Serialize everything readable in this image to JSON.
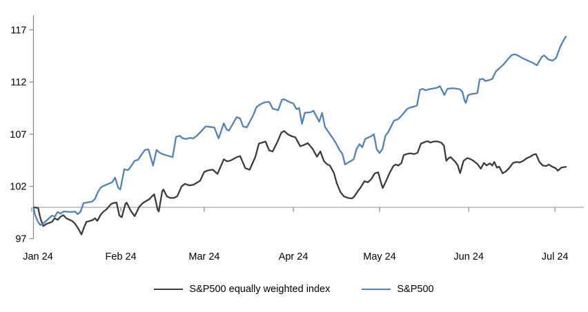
{
  "chart_data": {
    "type": "line",
    "title": "",
    "x_unit": "days since 2024-01-01",
    "x_tick_labels": [
      "Jan 24",
      "Feb 24",
      "Mar 24",
      "Apr 24",
      "May 24",
      "Jun 24",
      "Jul 24"
    ],
    "x_tick_days": [
      0,
      31,
      60,
      91,
      121,
      152,
      182
    ],
    "y_ticks": [
      117,
      112,
      107,
      102,
      97
    ],
    "y_range": [
      97,
      117.5
    ],
    "baseline": 100,
    "grid": false,
    "legend_position": "bottom-center",
    "colors": {
      "axis": "#8c8c8c",
      "baseline_line": "#a6a6a6",
      "text": "#000000",
      "background": "#ffffff"
    },
    "series": [
      {
        "name": "S&P500 equally weighted index",
        "color": "#3b3b3b",
        "points": [
          [
            0.7,
            100
          ],
          [
            2.2,
            99.95
          ],
          [
            3,
            98.95
          ],
          [
            4,
            98.2
          ],
          [
            5,
            98.4
          ],
          [
            7,
            98.6
          ],
          [
            8,
            98.95
          ],
          [
            9,
            98.8
          ],
          [
            10,
            99.1
          ],
          [
            11,
            99.25
          ],
          [
            12,
            98.95
          ],
          [
            14,
            98.7
          ],
          [
            15,
            98.45
          ],
          [
            16,
            98.05
          ],
          [
            17.3,
            97.4
          ],
          [
            18,
            97.95
          ],
          [
            19,
            98.6
          ],
          [
            21,
            98.75
          ],
          [
            22,
            98.95
          ],
          [
            22.8,
            98.7
          ],
          [
            24,
            99.3
          ],
          [
            25,
            99.6
          ],
          [
            26,
            99.8
          ],
          [
            27.5,
            100.3
          ],
          [
            28.5,
            100.42
          ],
          [
            29.5,
            100.45
          ],
          [
            30.5,
            99.2
          ],
          [
            31.3,
            99.05
          ],
          [
            32.6,
            100.35
          ],
          [
            33,
            100.45
          ],
          [
            34.6,
            99.6
          ],
          [
            35.8,
            99.15
          ],
          [
            37.4,
            100.05
          ],
          [
            38.6,
            100.4
          ],
          [
            39.8,
            100.6
          ],
          [
            41,
            100.8
          ],
          [
            41.8,
            101.05
          ],
          [
            42.6,
            101.25
          ],
          [
            43.8,
            99.75
          ],
          [
            44.2,
            99.6
          ],
          [
            45.4,
            101.55
          ],
          [
            45.8,
            101.7
          ],
          [
            47,
            101.05
          ],
          [
            48.2,
            100.9
          ],
          [
            49.4,
            100.9
          ],
          [
            50.6,
            101.05
          ],
          [
            52.1,
            102
          ],
          [
            53.3,
            102.25
          ],
          [
            54.8,
            102.1
          ],
          [
            56.2,
            102.15
          ],
          [
            57.4,
            102.35
          ],
          [
            58.6,
            102.55
          ],
          [
            60,
            103.4
          ],
          [
            61.5,
            103.55
          ],
          [
            63,
            103.6
          ],
          [
            64.6,
            103.2
          ],
          [
            66.8,
            104.6
          ],
          [
            68,
            104.4
          ],
          [
            69.3,
            104.5
          ],
          [
            71.3,
            104.8
          ],
          [
            72.5,
            104.9
          ],
          [
            74.3,
            103.75
          ],
          [
            75.8,
            103.6
          ],
          [
            77.8,
            104.85
          ],
          [
            79,
            106.1
          ],
          [
            81.3,
            106.3
          ],
          [
            82.6,
            105.45
          ],
          [
            83.8,
            105.35
          ],
          [
            85.5,
            106.3
          ],
          [
            86.8,
            107.15
          ],
          [
            87.8,
            107.3
          ],
          [
            89.3,
            106.95
          ],
          [
            90.5,
            106.8
          ],
          [
            91.7,
            106.7
          ],
          [
            93.4,
            105.85
          ],
          [
            94.5,
            105.95
          ],
          [
            96,
            106.15
          ],
          [
            97.7,
            105.6
          ],
          [
            99.2,
            104.85
          ],
          [
            100.4,
            105.35
          ],
          [
            101.6,
            104.45
          ],
          [
            102.6,
            104.15
          ],
          [
            103.7,
            104
          ],
          [
            105.1,
            103.3
          ],
          [
            106.1,
            102.3
          ],
          [
            107.3,
            101.5
          ],
          [
            108.5,
            101.06
          ],
          [
            110,
            100.9
          ],
          [
            111.4,
            100.85
          ],
          [
            112.1,
            101
          ],
          [
            113.3,
            101.5
          ],
          [
            114.5,
            101.95
          ],
          [
            115.7,
            102.5
          ],
          [
            116.9,
            102.4
          ],
          [
            118.1,
            102.7
          ],
          [
            119.3,
            103.25
          ],
          [
            120.5,
            103.35
          ],
          [
            121.7,
            102.15
          ],
          [
            122.1,
            101.85
          ],
          [
            123.3,
            102.55
          ],
          [
            124.5,
            103.3
          ],
          [
            125.8,
            103.95
          ],
          [
            126.6,
            104.1
          ],
          [
            127.5,
            104
          ],
          [
            128.6,
            104.25
          ],
          [
            129.4,
            105
          ],
          [
            130.6,
            105.12
          ],
          [
            131.8,
            105.17
          ],
          [
            133,
            105.1
          ],
          [
            134.2,
            105.22
          ],
          [
            135.4,
            106.1
          ],
          [
            137,
            106.28
          ],
          [
            137.8,
            106.33
          ],
          [
            138.6,
            106.2
          ],
          [
            140.1,
            106.31
          ],
          [
            141.3,
            106.3
          ],
          [
            142.5,
            106.18
          ],
          [
            143.4,
            105.9
          ],
          [
            144.2,
            104.45
          ],
          [
            145,
            104.7
          ],
          [
            145.8,
            104.8
          ],
          [
            146.6,
            104.55
          ],
          [
            147.4,
            104.35
          ],
          [
            148.2,
            104
          ],
          [
            149,
            103.27
          ],
          [
            150.2,
            104.45
          ],
          [
            151.5,
            104.72
          ],
          [
            152.8,
            104.6
          ],
          [
            153.8,
            104.42
          ],
          [
            155,
            104.15
          ],
          [
            156.2,
            103.7
          ],
          [
            157.3,
            104.25
          ],
          [
            158.2,
            104.02
          ],
          [
            159.4,
            104.2
          ],
          [
            160.2,
            104
          ],
          [
            160.9,
            104.35
          ],
          [
            161.8,
            103.8
          ],
          [
            162.6,
            103.9
          ],
          [
            163.8,
            103.25
          ],
          [
            165,
            103.45
          ],
          [
            166.2,
            103.8
          ],
          [
            167.4,
            104.25
          ],
          [
            168.6,
            104.35
          ],
          [
            169.8,
            104.3
          ],
          [
            171,
            104.45
          ],
          [
            172.2,
            104.7
          ],
          [
            173.4,
            104.85
          ],
          [
            174.6,
            105.05
          ],
          [
            175.4,
            105.1
          ],
          [
            176.6,
            104.35
          ],
          [
            177.8,
            104
          ],
          [
            179,
            103.95
          ],
          [
            179.8,
            104.1
          ],
          [
            181,
            103.9
          ],
          [
            182.2,
            103.75
          ],
          [
            183,
            103.5
          ],
          [
            184.2,
            103.8
          ],
          [
            185.8,
            103.87
          ]
        ]
      },
      {
        "name": "S&P500",
        "color": "#4f81bd",
        "points": [
          [
            0.7,
            99.9
          ],
          [
            1,
            99.4
          ],
          [
            2,
            98.7
          ],
          [
            3,
            98.3
          ],
          [
            4,
            98.45
          ],
          [
            7,
            99.2
          ],
          [
            8,
            99.1
          ],
          [
            9,
            99.55
          ],
          [
            10,
            99.4
          ],
          [
            11,
            99.6
          ],
          [
            14,
            99.55
          ],
          [
            15,
            99.6
          ],
          [
            16,
            99.35
          ],
          [
            17,
            99.6
          ],
          [
            18,
            100.4
          ],
          [
            21,
            100.55
          ],
          [
            22,
            100.8
          ],
          [
            23,
            101.45
          ],
          [
            24,
            101.9
          ],
          [
            25,
            102.05
          ],
          [
            28,
            102.4
          ],
          [
            29,
            102.85
          ],
          [
            30,
            101.9
          ],
          [
            30.8,
            101.7
          ],
          [
            32.2,
            103.65
          ],
          [
            33.4,
            103.55
          ],
          [
            34.2,
            103.8
          ],
          [
            35.8,
            104.45
          ],
          [
            37,
            104.55
          ],
          [
            37.8,
            104.9
          ],
          [
            39.4,
            105.5
          ],
          [
            40.6,
            105.55
          ],
          [
            42.2,
            104
          ],
          [
            43.4,
            105.5
          ],
          [
            44.2,
            105.3
          ],
          [
            45.4,
            105.1
          ],
          [
            46.6,
            105
          ],
          [
            47.8,
            104.9
          ],
          [
            49,
            104.8
          ],
          [
            50.2,
            106.75
          ],
          [
            51.4,
            106.85
          ],
          [
            52.6,
            106.6
          ],
          [
            53.8,
            106.55
          ],
          [
            55,
            106.65
          ],
          [
            56.2,
            106.6
          ],
          [
            57.4,
            106.85
          ],
          [
            59,
            107.3
          ],
          [
            60.5,
            107.75
          ],
          [
            62,
            107.7
          ],
          [
            63.5,
            107.65
          ],
          [
            65,
            106.6
          ],
          [
            66.8,
            108.05
          ],
          [
            67.8,
            107.45
          ],
          [
            68.6,
            107.35
          ],
          [
            71.3,
            108.65
          ],
          [
            72.5,
            108.5
          ],
          [
            73.5,
            107.75
          ],
          [
            74.8,
            107.65
          ],
          [
            77,
            108.8
          ],
          [
            78.2,
            109.6
          ],
          [
            79.4,
            109.85
          ],
          [
            81,
            110.05
          ],
          [
            82.6,
            110.1
          ],
          [
            83.8,
            109.45
          ],
          [
            85.7,
            109.3
          ],
          [
            87,
            110.3
          ],
          [
            87.8,
            110.35
          ],
          [
            89.5,
            110.1
          ],
          [
            91,
            109.95
          ],
          [
            92.1,
            109.4
          ],
          [
            93,
            109.5
          ],
          [
            94,
            108
          ],
          [
            95,
            109.05
          ],
          [
            97,
            109.1
          ],
          [
            98,
            109.25
          ],
          [
            100,
            108.2
          ],
          [
            101,
            109.05
          ],
          [
            102,
            107.7
          ],
          [
            105,
            106.5
          ],
          [
            106,
            106.05
          ],
          [
            107,
            105.5
          ],
          [
            108,
            105.15
          ],
          [
            109,
            104.1
          ],
          [
            112,
            104.6
          ],
          [
            113,
            105.6
          ],
          [
            114,
            106.05
          ],
          [
            115,
            105.75
          ],
          [
            116,
            106.55
          ],
          [
            118,
            106.8
          ],
          [
            119,
            107
          ],
          [
            120,
            105.55
          ],
          [
            121,
            105.2
          ],
          [
            122,
            105.6
          ],
          [
            123,
            106.85
          ],
          [
            124,
            107.2
          ],
          [
            126,
            108.3
          ],
          [
            127.5,
            108.45
          ],
          [
            129,
            108.9
          ],
          [
            130.5,
            109.4
          ],
          [
            131.5,
            109.55
          ],
          [
            133,
            109.65
          ],
          [
            134,
            109.75
          ],
          [
            135,
            111.25
          ],
          [
            136,
            111.35
          ],
          [
            137,
            111.2
          ],
          [
            138,
            111.3
          ],
          [
            141,
            111.45
          ],
          [
            142,
            111.6
          ],
          [
            143.5,
            110.75
          ],
          [
            144.6,
            111.35
          ],
          [
            146,
            111.4
          ],
          [
            147.5,
            111.38
          ],
          [
            149,
            111.3
          ],
          [
            149.8,
            111.05
          ],
          [
            150.6,
            110.2
          ],
          [
            151,
            110
          ],
          [
            151.8,
            110.75
          ],
          [
            153,
            110.85
          ],
          [
            154.2,
            110.9
          ],
          [
            155,
            110.95
          ],
          [
            155.8,
            112.25
          ],
          [
            157,
            112.3
          ],
          [
            157.8,
            112.1
          ],
          [
            159,
            112.18
          ],
          [
            160.2,
            112.3
          ],
          [
            161.4,
            113
          ],
          [
            162.6,
            113.3
          ],
          [
            163.8,
            113.6
          ],
          [
            164.6,
            113.85
          ],
          [
            165.8,
            114.25
          ],
          [
            167,
            114.6
          ],
          [
            168.2,
            114.65
          ],
          [
            169.4,
            114.5
          ],
          [
            170.6,
            114.3
          ],
          [
            171.8,
            114.15
          ],
          [
            173,
            114
          ],
          [
            174.2,
            113.85
          ],
          [
            175.7,
            113.6
          ],
          [
            177.4,
            114.4
          ],
          [
            178.2,
            114.55
          ],
          [
            179.8,
            114.15
          ],
          [
            181.2,
            114.05
          ],
          [
            182.4,
            114.3
          ],
          [
            183.8,
            115.35
          ],
          [
            185,
            116
          ],
          [
            185.8,
            116.35
          ]
        ]
      }
    ]
  }
}
